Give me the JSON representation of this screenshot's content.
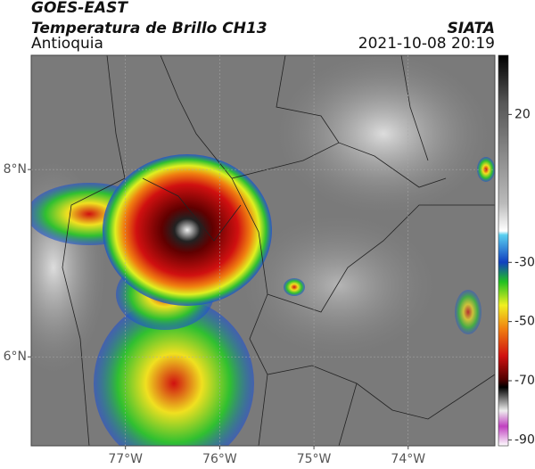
{
  "header": {
    "satellite": "GOES-EAST",
    "product": "Temperatura de Brillo CH13",
    "region": "Antioquia",
    "source": "SIATA",
    "datetime": "2021-10-08 20:19"
  },
  "map": {
    "xlim": [
      -78,
      -73.08
    ],
    "ylim": [
      5.05,
      9.22
    ],
    "xticks": [
      {
        "value": -77,
        "label": "77°W"
      },
      {
        "value": -76,
        "label": "76°W"
      },
      {
        "value": -75,
        "label": "75°W"
      },
      {
        "value": -74,
        "label": "74°W"
      }
    ],
    "yticks": [
      {
        "value": 6,
        "label": "6°N"
      },
      {
        "value": 8,
        "label": "8°N"
      }
    ],
    "grid": true
  },
  "colorbar": {
    "ylim": [
      -92,
      40
    ],
    "yticks": [
      20,
      -30,
      -50,
      -70,
      -90
    ]
  }
}
